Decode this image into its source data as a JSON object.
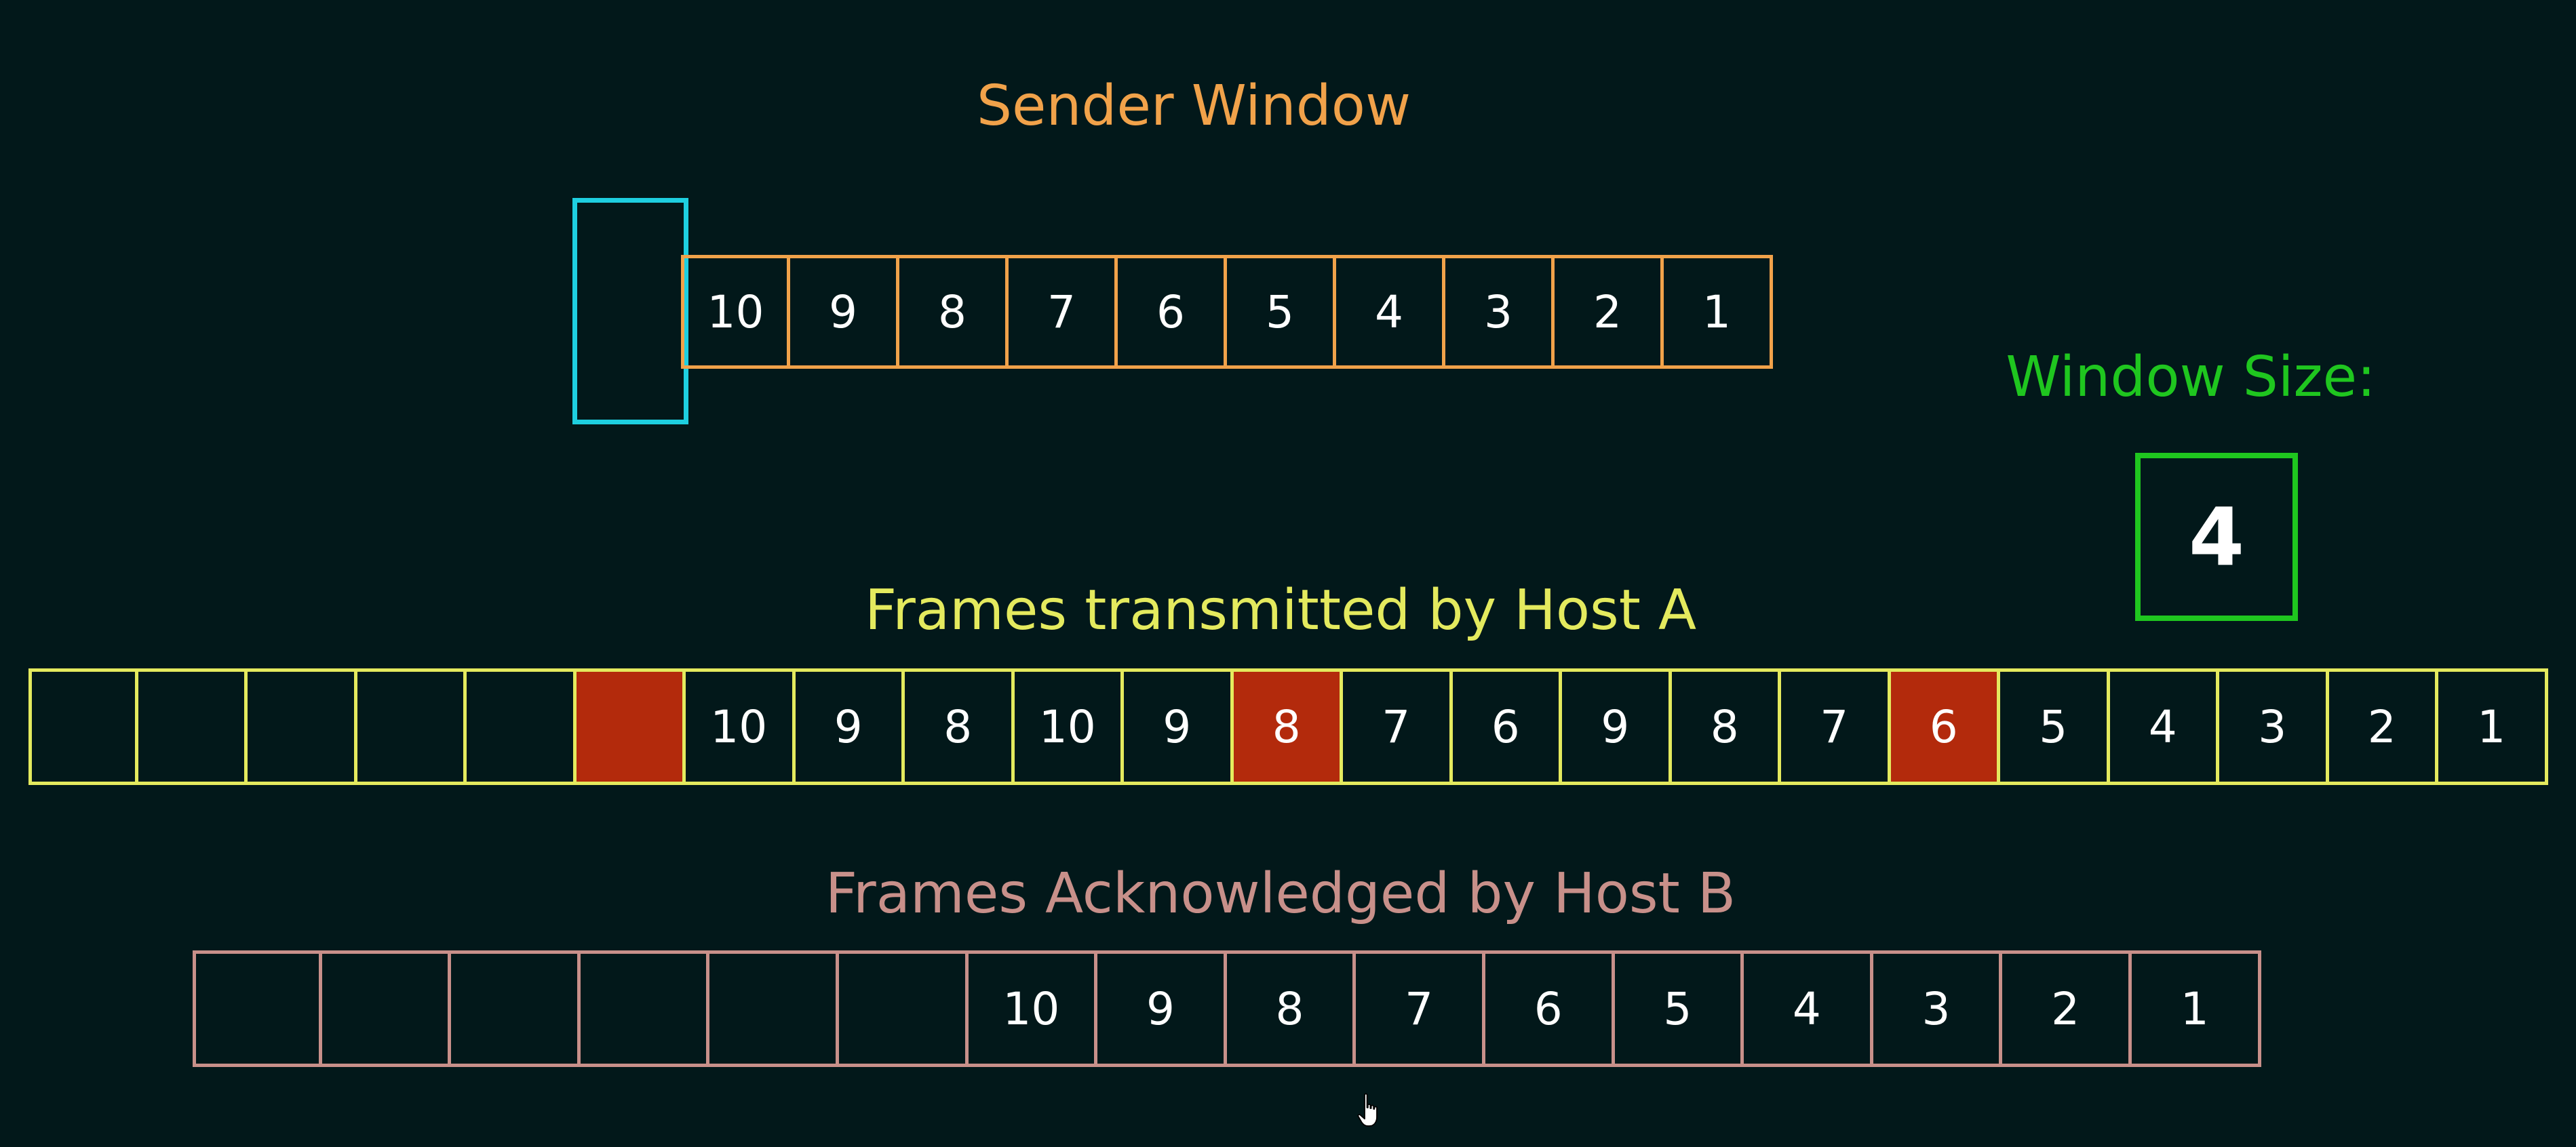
{
  "sender": {
    "title": "Sender Window",
    "color": "#f1a24a",
    "slider_color": "#1ecfe0",
    "frames": [
      "10",
      "9",
      "8",
      "7",
      "6",
      "5",
      "4",
      "3",
      "2",
      "1"
    ]
  },
  "transmitted": {
    "title": "Frames transmitted by Host A",
    "color": "#e4ea5e",
    "lost_color": "#b32a0c",
    "frames": [
      {
        "label": "",
        "lost": false
      },
      {
        "label": "",
        "lost": false
      },
      {
        "label": "",
        "lost": false
      },
      {
        "label": "",
        "lost": false
      },
      {
        "label": "",
        "lost": false
      },
      {
        "label": "",
        "lost": true
      },
      {
        "label": "10",
        "lost": false
      },
      {
        "label": "9",
        "lost": false
      },
      {
        "label": "8",
        "lost": false
      },
      {
        "label": "10",
        "lost": false
      },
      {
        "label": "9",
        "lost": false
      },
      {
        "label": "8",
        "lost": true
      },
      {
        "label": "7",
        "lost": false
      },
      {
        "label": "6",
        "lost": false
      },
      {
        "label": "9",
        "lost": false
      },
      {
        "label": "8",
        "lost": false
      },
      {
        "label": "7",
        "lost": false
      },
      {
        "label": "6",
        "lost": true
      },
      {
        "label": "5",
        "lost": false
      },
      {
        "label": "4",
        "lost": false
      },
      {
        "label": "3",
        "lost": false
      },
      {
        "label": "2",
        "lost": false
      },
      {
        "label": "1",
        "lost": false
      }
    ]
  },
  "acknowledged": {
    "title": "Frames Acknowledged by Host B",
    "color": "#c8908a",
    "frames": [
      "",
      "",
      "",
      "",
      "",
      "",
      "10",
      "9",
      "8",
      "7",
      "6",
      "5",
      "4",
      "3",
      "2",
      "1"
    ]
  },
  "window_size": {
    "label": "Window Size:",
    "value": "4",
    "color": "#1fc61f"
  },
  "icons": {
    "cursor": "hand-pointer-cursor-icon"
  }
}
